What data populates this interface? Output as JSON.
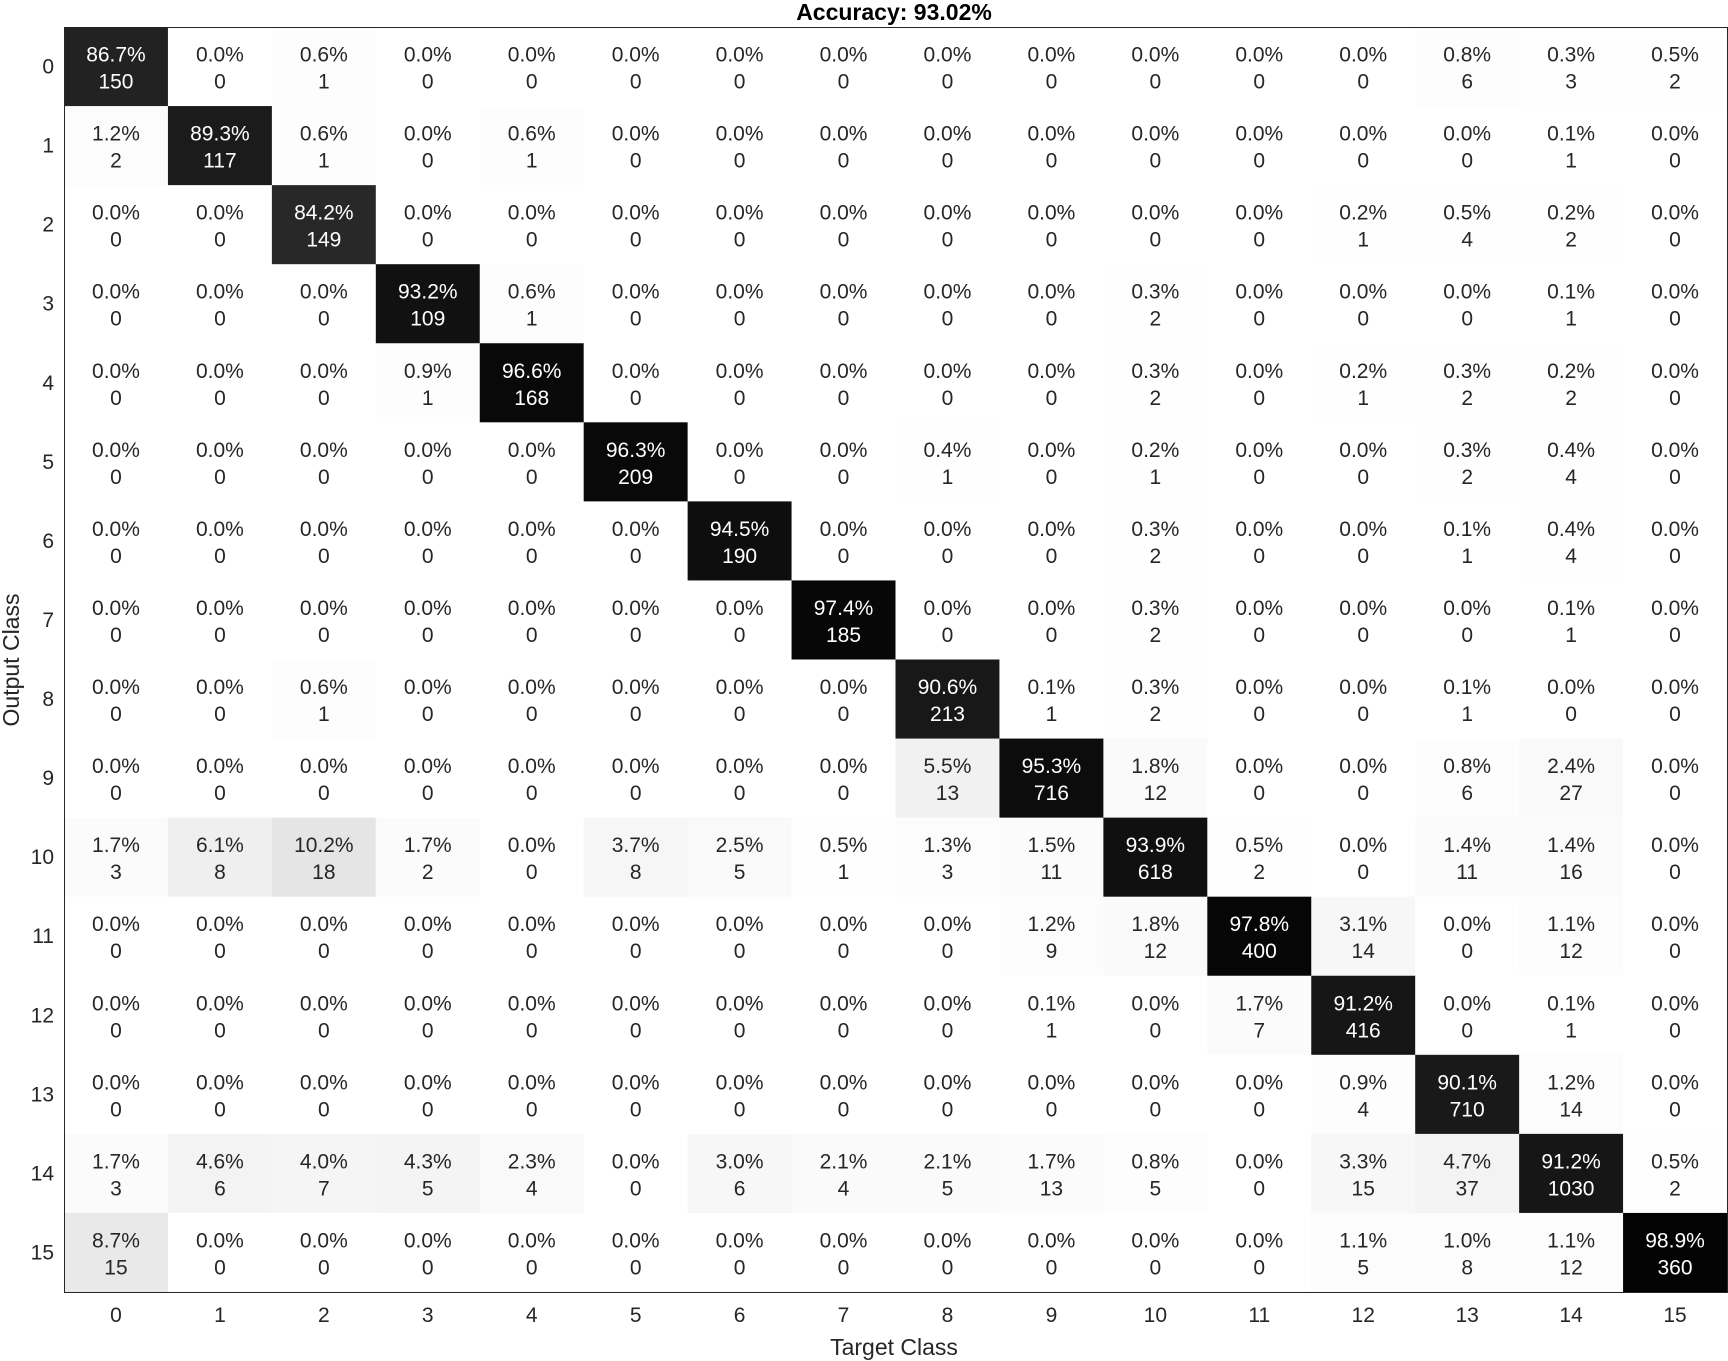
{
  "chart_data": {
    "type": "heatmap",
    "title": "Accuracy: 93.02%",
    "xlabel": "Target Class",
    "ylabel": "Output Class",
    "x_categories": [
      "0",
      "1",
      "2",
      "3",
      "4",
      "5",
      "6",
      "7",
      "8",
      "9",
      "10",
      "11",
      "12",
      "13",
      "14",
      "15"
    ],
    "y_categories": [
      "0",
      "1",
      "2",
      "3",
      "4",
      "5",
      "6",
      "7",
      "8",
      "9",
      "10",
      "11",
      "12",
      "13",
      "14",
      "15"
    ],
    "colormap": "gray (white = 0%, black = 100%)",
    "percentages": [
      [
        "86.7%",
        "0.0%",
        "0.6%",
        "0.0%",
        "0.0%",
        "0.0%",
        "0.0%",
        "0.0%",
        "0.0%",
        "0.0%",
        "0.0%",
        "0.0%",
        "0.0%",
        "0.8%",
        "0.3%",
        "0.5%"
      ],
      [
        "1.2%",
        "89.3%",
        "0.6%",
        "0.0%",
        "0.6%",
        "0.0%",
        "0.0%",
        "0.0%",
        "0.0%",
        "0.0%",
        "0.0%",
        "0.0%",
        "0.0%",
        "0.0%",
        "0.1%",
        "0.0%"
      ],
      [
        "0.0%",
        "0.0%",
        "84.2%",
        "0.0%",
        "0.0%",
        "0.0%",
        "0.0%",
        "0.0%",
        "0.0%",
        "0.0%",
        "0.0%",
        "0.0%",
        "0.2%",
        "0.5%",
        "0.2%",
        "0.0%"
      ],
      [
        "0.0%",
        "0.0%",
        "0.0%",
        "93.2%",
        "0.6%",
        "0.0%",
        "0.0%",
        "0.0%",
        "0.0%",
        "0.0%",
        "0.3%",
        "0.0%",
        "0.0%",
        "0.0%",
        "0.1%",
        "0.0%"
      ],
      [
        "0.0%",
        "0.0%",
        "0.0%",
        "0.9%",
        "96.6%",
        "0.0%",
        "0.0%",
        "0.0%",
        "0.0%",
        "0.0%",
        "0.3%",
        "0.0%",
        "0.2%",
        "0.3%",
        "0.2%",
        "0.0%"
      ],
      [
        "0.0%",
        "0.0%",
        "0.0%",
        "0.0%",
        "0.0%",
        "96.3%",
        "0.0%",
        "0.0%",
        "0.4%",
        "0.0%",
        "0.2%",
        "0.0%",
        "0.0%",
        "0.3%",
        "0.4%",
        "0.0%"
      ],
      [
        "0.0%",
        "0.0%",
        "0.0%",
        "0.0%",
        "0.0%",
        "0.0%",
        "94.5%",
        "0.0%",
        "0.0%",
        "0.0%",
        "0.3%",
        "0.0%",
        "0.0%",
        "0.1%",
        "0.4%",
        "0.0%"
      ],
      [
        "0.0%",
        "0.0%",
        "0.0%",
        "0.0%",
        "0.0%",
        "0.0%",
        "0.0%",
        "97.4%",
        "0.0%",
        "0.0%",
        "0.3%",
        "0.0%",
        "0.0%",
        "0.0%",
        "0.1%",
        "0.0%"
      ],
      [
        "0.0%",
        "0.0%",
        "0.6%",
        "0.0%",
        "0.0%",
        "0.0%",
        "0.0%",
        "0.0%",
        "90.6%",
        "0.1%",
        "0.3%",
        "0.0%",
        "0.0%",
        "0.1%",
        "0.0%",
        "0.0%"
      ],
      [
        "0.0%",
        "0.0%",
        "0.0%",
        "0.0%",
        "0.0%",
        "0.0%",
        "0.0%",
        "0.0%",
        "5.5%",
        "95.3%",
        "1.8%",
        "0.0%",
        "0.0%",
        "0.8%",
        "2.4%",
        "0.0%"
      ],
      [
        "1.7%",
        "6.1%",
        "10.2%",
        "1.7%",
        "0.0%",
        "3.7%",
        "2.5%",
        "0.5%",
        "1.3%",
        "1.5%",
        "93.9%",
        "0.5%",
        "0.0%",
        "1.4%",
        "1.4%",
        "0.0%"
      ],
      [
        "0.0%",
        "0.0%",
        "0.0%",
        "0.0%",
        "0.0%",
        "0.0%",
        "0.0%",
        "0.0%",
        "0.0%",
        "1.2%",
        "1.8%",
        "97.8%",
        "3.1%",
        "0.0%",
        "1.1%",
        "0.0%"
      ],
      [
        "0.0%",
        "0.0%",
        "0.0%",
        "0.0%",
        "0.0%",
        "0.0%",
        "0.0%",
        "0.0%",
        "0.0%",
        "0.1%",
        "0.0%",
        "1.7%",
        "91.2%",
        "0.0%",
        "0.1%",
        "0.0%"
      ],
      [
        "0.0%",
        "0.0%",
        "0.0%",
        "0.0%",
        "0.0%",
        "0.0%",
        "0.0%",
        "0.0%",
        "0.0%",
        "0.0%",
        "0.0%",
        "0.0%",
        "0.9%",
        "90.1%",
        "1.2%",
        "0.0%"
      ],
      [
        "1.7%",
        "4.6%",
        "4.0%",
        "4.3%",
        "2.3%",
        "0.0%",
        "3.0%",
        "2.1%",
        "2.1%",
        "1.7%",
        "0.8%",
        "0.0%",
        "3.3%",
        "4.7%",
        "91.2%",
        "0.5%"
      ],
      [
        "8.7%",
        "0.0%",
        "0.0%",
        "0.0%",
        "0.0%",
        "0.0%",
        "0.0%",
        "0.0%",
        "0.0%",
        "0.0%",
        "0.0%",
        "0.0%",
        "1.1%",
        "1.0%",
        "1.1%",
        "98.9%"
      ]
    ],
    "counts": [
      [
        "150",
        "0",
        "1",
        "0",
        "0",
        "0",
        "0",
        "0",
        "0",
        "0",
        "0",
        "0",
        "0",
        "6",
        "3",
        "2"
      ],
      [
        "2",
        "117",
        "1",
        "0",
        "1",
        "0",
        "0",
        "0",
        "0",
        "0",
        "0",
        "0",
        "0",
        "0",
        "1",
        "0"
      ],
      [
        "0",
        "0",
        "149",
        "0",
        "0",
        "0",
        "0",
        "0",
        "0",
        "0",
        "0",
        "0",
        "1",
        "4",
        "2",
        "0"
      ],
      [
        "0",
        "0",
        "0",
        "109",
        "1",
        "0",
        "0",
        "0",
        "0",
        "0",
        "2",
        "0",
        "0",
        "0",
        "1",
        "0"
      ],
      [
        "0",
        "0",
        "0",
        "1",
        "168",
        "0",
        "0",
        "0",
        "0",
        "0",
        "2",
        "0",
        "1",
        "2",
        "2",
        "0"
      ],
      [
        "0",
        "0",
        "0",
        "0",
        "0",
        "209",
        "0",
        "0",
        "1",
        "0",
        "1",
        "0",
        "0",
        "2",
        "4",
        "0"
      ],
      [
        "0",
        "0",
        "0",
        "0",
        "0",
        "0",
        "190",
        "0",
        "0",
        "0",
        "2",
        "0",
        "0",
        "1",
        "4",
        "0"
      ],
      [
        "0",
        "0",
        "0",
        "0",
        "0",
        "0",
        "0",
        "185",
        "0",
        "0",
        "2",
        "0",
        "0",
        "0",
        "1",
        "0"
      ],
      [
        "0",
        "0",
        "1",
        "0",
        "0",
        "0",
        "0",
        "0",
        "213",
        "1",
        "2",
        "0",
        "0",
        "1",
        "0",
        "0"
      ],
      [
        "0",
        "0",
        "0",
        "0",
        "0",
        "0",
        "0",
        "0",
        "13",
        "716",
        "12",
        "0",
        "0",
        "6",
        "27",
        "0"
      ],
      [
        "3",
        "8",
        "18",
        "2",
        "0",
        "8",
        "5",
        "1",
        "3",
        "11",
        "618",
        "2",
        "0",
        "11",
        "16",
        "0"
      ],
      [
        "0",
        "0",
        "0",
        "0",
        "0",
        "0",
        "0",
        "0",
        "0",
        "9",
        "12",
        "400",
        "14",
        "0",
        "12",
        "0"
      ],
      [
        "0",
        "0",
        "0",
        "0",
        "0",
        "0",
        "0",
        "0",
        "0",
        "1",
        "0",
        "7",
        "416",
        "0",
        "1",
        "0"
      ],
      [
        "0",
        "0",
        "0",
        "0",
        "0",
        "0",
        "0",
        "0",
        "0",
        "0",
        "0",
        "0",
        "4",
        "710",
        "14",
        "0"
      ],
      [
        "3",
        "6",
        "7",
        "5",
        "4",
        "0",
        "6",
        "4",
        "5",
        "13",
        "5",
        "0",
        "15",
        "37",
        "1030",
        "2"
      ],
      [
        "15",
        "0",
        "0",
        "0",
        "0",
        "0",
        "0",
        "0",
        "0",
        "0",
        "0",
        "0",
        "5",
        "8",
        "12",
        "360"
      ]
    ]
  }
}
